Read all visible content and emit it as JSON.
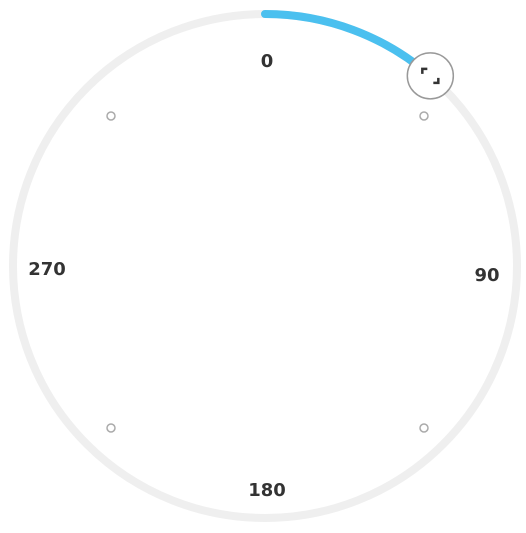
{
  "dial": {
    "value": 41,
    "labels": [
      0,
      90,
      180,
      270
    ],
    "color": "#4bc0ef"
  }
}
